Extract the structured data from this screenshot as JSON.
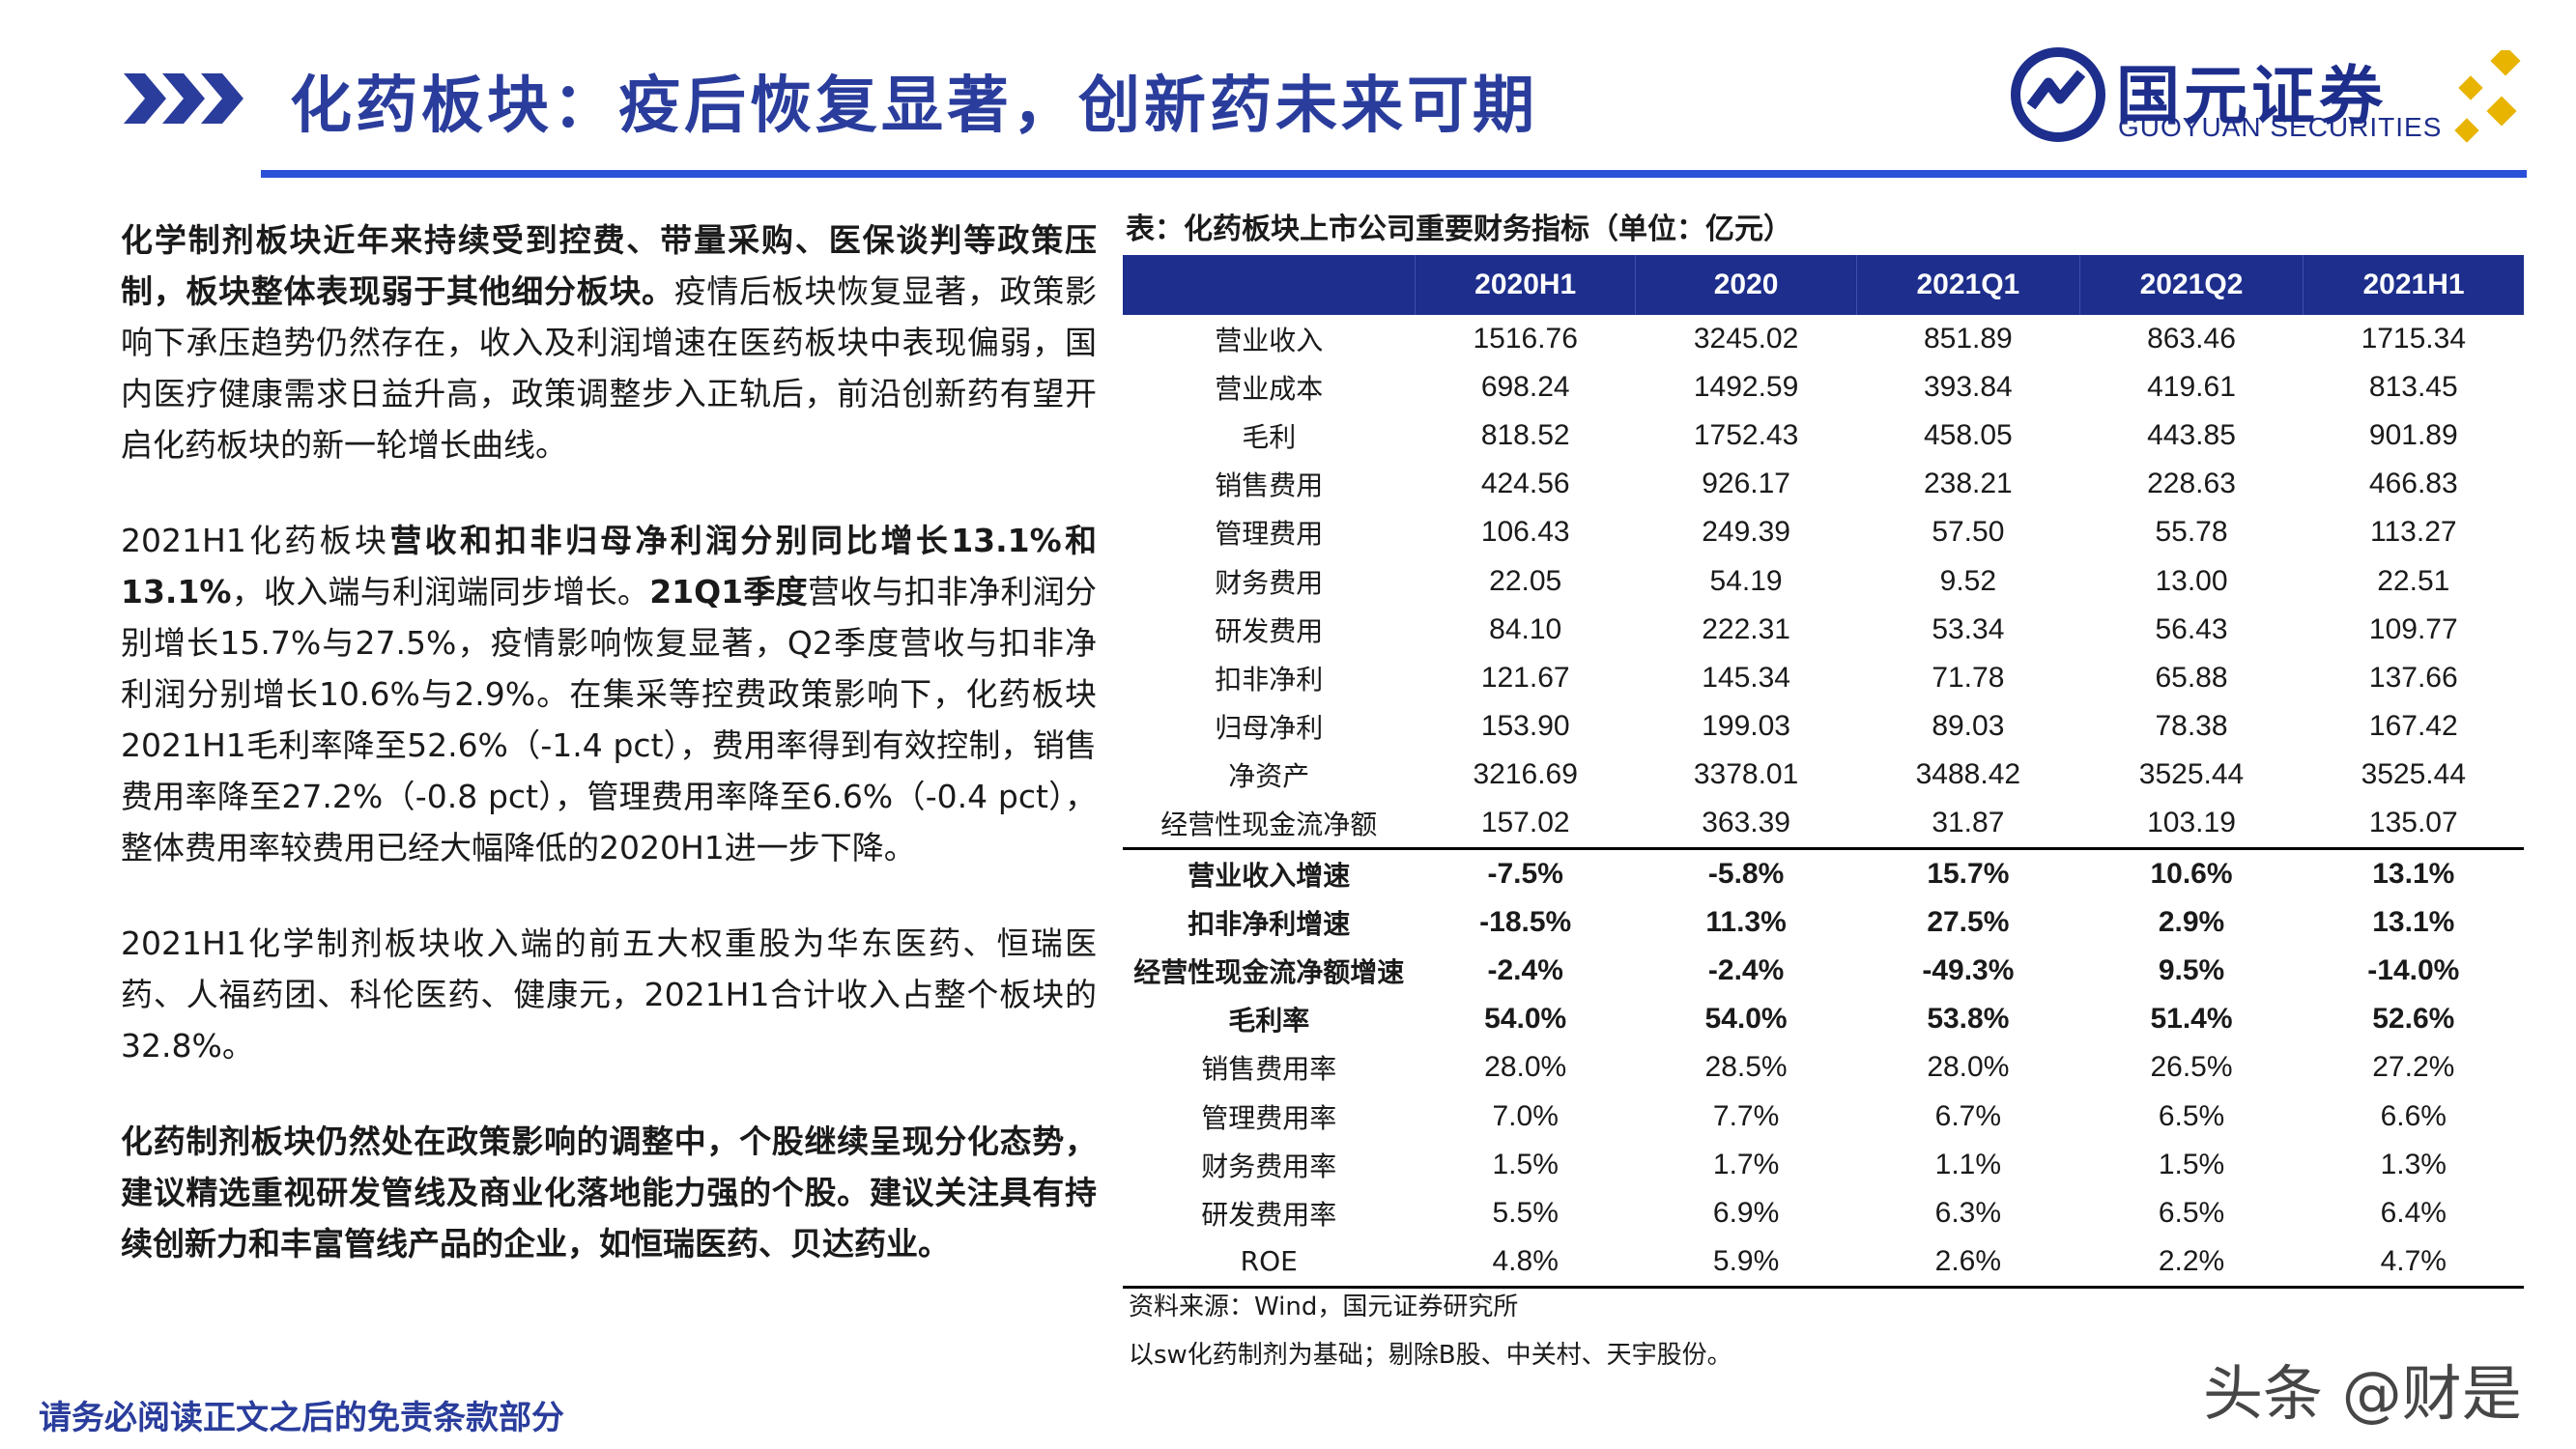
{
  "header": {
    "title": "化药板块：疫后恢复显著，创新药未来可期",
    "logo_cn": "国元证券",
    "logo_en": "GUOYUAN SECURITIES"
  },
  "colors": {
    "brand": "#1d2e8c",
    "title": "#2a3d9c",
    "rule": "#2a4fd8",
    "accent_gold": "#e8b400"
  },
  "body": {
    "p1": "化学制剂板块近年来持续受到控费、带量采购、医保谈判等政策压制，板块整体表现弱于其他细分板块。疫情后板块恢复显著，政策影响仍下承压趋势仍然存在，收入及利润增速在医药板块中表现偏弱，国内医疗健康需求日益升高，政策调整步入正轨后，前沿创新药有望开启化药板块的新一轮增长曲线。",
    "p1_bold": "化学制剂板块近年来持续受到控费、带量采购、医保谈判等政策压制，板块整体表现弱于其他细分板块。",
    "p1_rest": "疫情后板块恢复显著，政策影响下承压趋势仍然存在，收入及利润增速在医药板块中表现偏弱，国内医疗健康需求日益升高，政策调整步入正轨后，前沿创新药有望开启化药板块的新一轮增长曲线。",
    "p2_a": "2021H1化药板块",
    "p2_b": "营收和扣非归母净利润分别同比增长13.1%和13.1%",
    "p2_c": "，收入端与利润端同步增长。",
    "p2_d": "21Q1季度",
    "p2_e": "营收与扣非净利润分别增长15.7%与27.5%，疫情影响恢复显著，Q2季度营收与扣非净利润分别增长10.6%与2.9%。在集采等控费政策影响下，化药板块2021H1毛利率降至52.6%（-1.4 pct），费用率得到有效控制，销售费用率降至27.2%（-0.8 pct），管理费用率降至6.6%（-0.4 pct），整体费用率较费用已经大幅降低的2020H1进一步下降。",
    "p3": "2021H1化学制剂板块收入端的前五大权重股为华东医药、恒瑞医药、人福药团、科伦医药、健康元，2021H1合计收入占整个板块的32.8%。",
    "p4": "化药制剂板块仍然处在政策影响的调整中，个股继续呈现分化态势，建议精选重视研发管线及商业化落地能力强的个股。建议关注具有持续创新力和丰富管线产品的企业，如恒瑞医药、贝达药业。"
  },
  "table": {
    "caption": "表：化药板块上市公司重要财务指标（单位：亿元）",
    "headers": [
      "",
      "2020H1",
      "2020",
      "2021Q1",
      "2021Q2",
      "2021H1"
    ],
    "rows": [
      {
        "label": "营业收入",
        "v": [
          "1516.76",
          "3245.02",
          "851.89",
          "863.46",
          "1715.34"
        ]
      },
      {
        "label": "营业成本",
        "v": [
          "698.24",
          "1492.59",
          "393.84",
          "419.61",
          "813.45"
        ]
      },
      {
        "label": "毛利",
        "v": [
          "818.52",
          "1752.43",
          "458.05",
          "443.85",
          "901.89"
        ]
      },
      {
        "label": "销售费用",
        "v": [
          "424.56",
          "926.17",
          "238.21",
          "228.63",
          "466.83"
        ]
      },
      {
        "label": "管理费用",
        "v": [
          "106.43",
          "249.39",
          "57.50",
          "55.78",
          "113.27"
        ]
      },
      {
        "label": "财务费用",
        "v": [
          "22.05",
          "54.19",
          "9.52",
          "13.00",
          "22.51"
        ]
      },
      {
        "label": "研发费用",
        "v": [
          "84.10",
          "222.31",
          "53.34",
          "56.43",
          "109.77"
        ]
      },
      {
        "label": "扣非净利",
        "v": [
          "121.67",
          "145.34",
          "71.78",
          "65.88",
          "137.66"
        ]
      },
      {
        "label": "归母净利",
        "v": [
          "153.90",
          "199.03",
          "89.03",
          "78.38",
          "167.42"
        ]
      },
      {
        "label": "净资产",
        "v": [
          "3216.69",
          "3378.01",
          "3488.42",
          "3525.44",
          "3525.44"
        ]
      },
      {
        "label": "经营性现金流净额",
        "v": [
          "157.02",
          "363.39",
          "31.87",
          "103.19",
          "135.07"
        ]
      },
      {
        "label": "营业收入增速",
        "v": [
          "-7.5%",
          "-5.8%",
          "15.7%",
          "10.6%",
          "13.1%"
        ],
        "bold": true,
        "sep": true
      },
      {
        "label": "扣非净利增速",
        "v": [
          "-18.5%",
          "11.3%",
          "27.5%",
          "2.9%",
          "13.1%"
        ],
        "bold": true
      },
      {
        "label": "经营性现金流净额增速",
        "v": [
          "-2.4%",
          "-2.4%",
          "-49.3%",
          "9.5%",
          "-14.0%"
        ],
        "bold": true
      },
      {
        "label": "毛利率",
        "v": [
          "54.0%",
          "54.0%",
          "53.8%",
          "51.4%",
          "52.6%"
        ],
        "bold": true
      },
      {
        "label": "销售费用率",
        "v": [
          "28.0%",
          "28.5%",
          "28.0%",
          "26.5%",
          "27.2%"
        ]
      },
      {
        "label": "管理费用率",
        "v": [
          "7.0%",
          "7.7%",
          "6.7%",
          "6.5%",
          "6.6%"
        ]
      },
      {
        "label": "财务费用率",
        "v": [
          "1.5%",
          "1.7%",
          "1.1%",
          "1.5%",
          "1.3%"
        ]
      },
      {
        "label": "研发费用率",
        "v": [
          "5.5%",
          "6.9%",
          "6.3%",
          "6.5%",
          "6.4%"
        ]
      },
      {
        "label": "ROE",
        "v": [
          "4.8%",
          "5.9%",
          "2.6%",
          "2.2%",
          "4.7%"
        ],
        "last": true
      }
    ],
    "source": "资料来源：Wind，国元证券研究所",
    "note": "以sw化药制剂为基础；剔除B股、中关村、天宇股份。"
  },
  "footer": {
    "disclaimer": "请务必阅读正文之后的免责条款部分"
  },
  "watermark": "头条 @财是"
}
